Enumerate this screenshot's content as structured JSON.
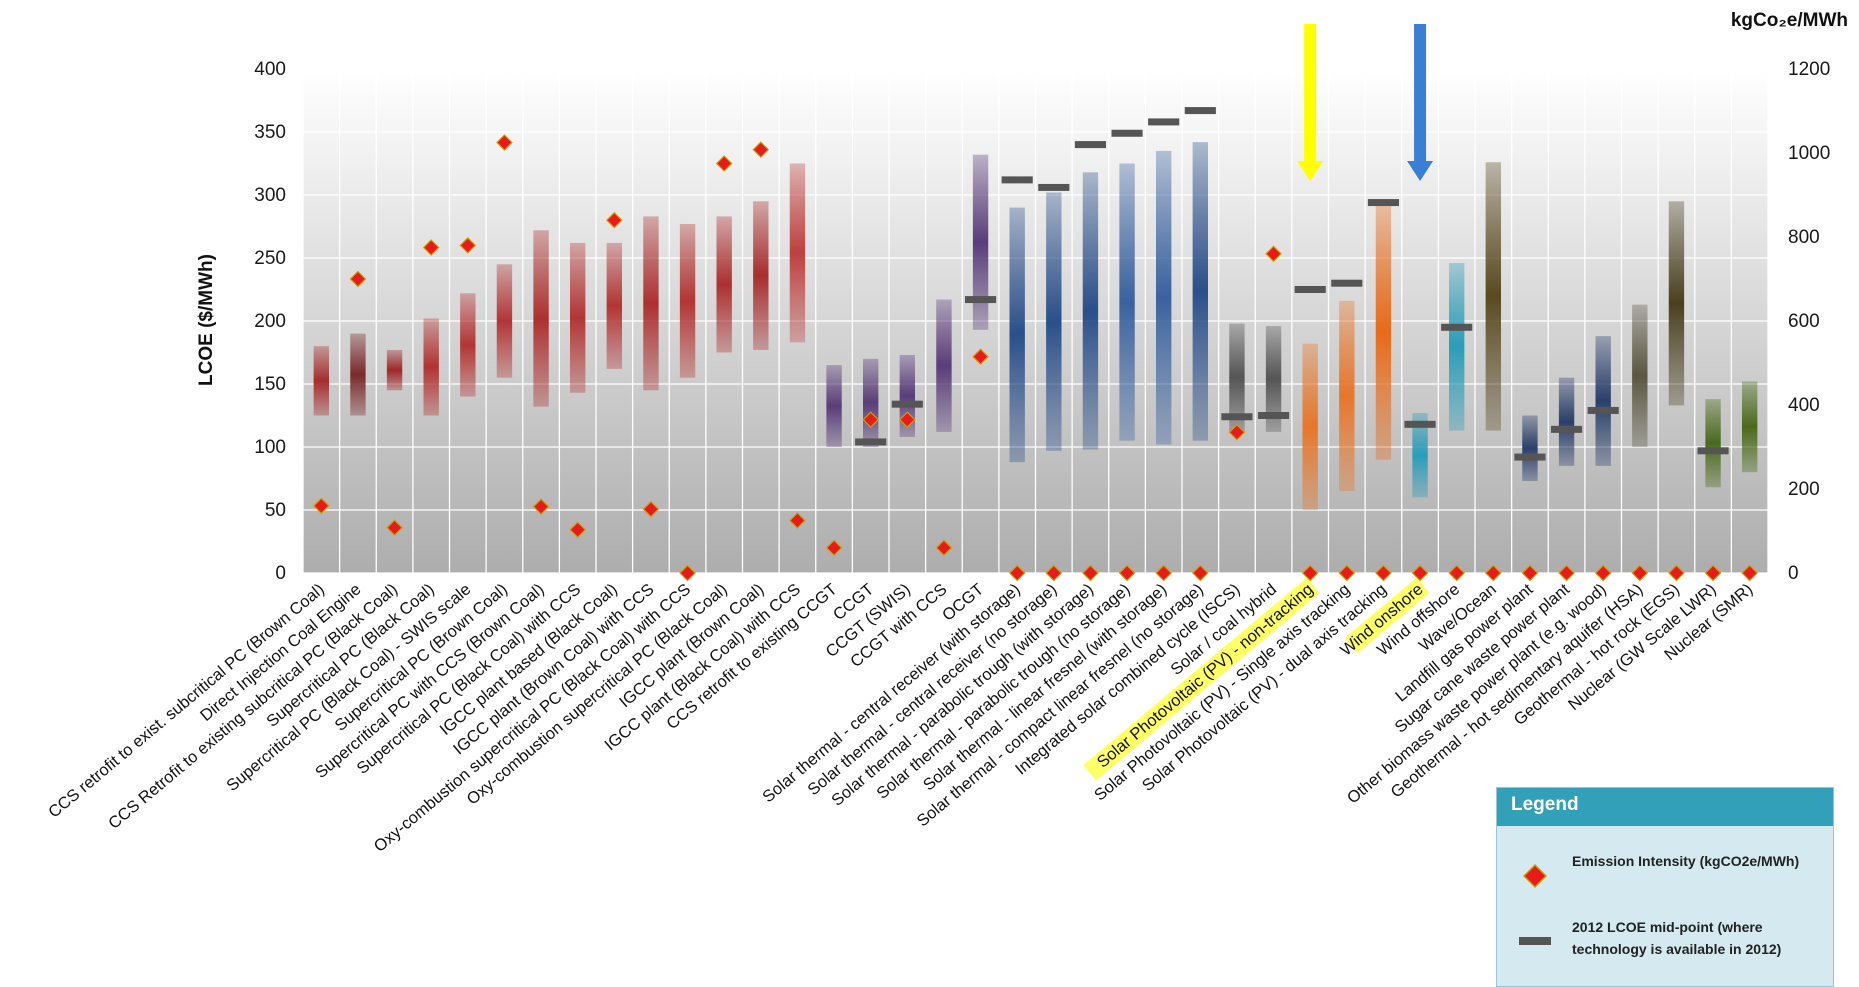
{
  "chart_data": {
    "type": "range-bar",
    "title": "",
    "ylabel": "LCOE ($/MWh)",
    "y2label": "kgCo₂e/MWh",
    "ylim": [
      0,
      400
    ],
    "y2lim": [
      0,
      1200
    ],
    "yticks": [
      0,
      50,
      100,
      150,
      200,
      250,
      300,
      350,
      400
    ],
    "y2ticks": [
      0,
      200,
      400,
      600,
      800,
      1000,
      1200
    ],
    "categories": [
      "CCS retrofit to exist. subcritical PC (Brown Coal)",
      "Direct Injection Coal Engine",
      "CCS Retrofit to existing subcritical PC (Black Coal)",
      "Supercritical PC (Black Coal)",
      "Supercritical PC (Black Coal) - SWIS scale",
      "Supercritical PC (Brown Coal)",
      "Supercritical PC with CCS (Brown Coal)",
      "Supercritical PC (Black Coal) with CCS",
      "IGCC plant based (Black Coal)",
      "IGCC plant (Brown Coal) with CCS",
      "Oxy-combustion supercritical PC (Black Coal) with CCS",
      "Oxy-combustion supercritical PC (Black Coal)",
      "IGCC plant (Brown Coal)",
      "IGCC plant (Black Coal) with CCS",
      "CCS retrofit to existing CCGT",
      "CCGT",
      "CCGT (SWIS)",
      "CCGT with CCS",
      "OCGT",
      "Solar thermal - central receiver (with storage)",
      "Solar thermal - central receiver (no storage)",
      "Solar thermal - parabolic trough (with storage)",
      "Solar thermal - parabolic trough (no storage)",
      "Solar thermal - linear fresnel (with storage)",
      "Solar thermal - compact linear fresnel (no storage)",
      "Integrated solar combined cycle (ISCS)",
      "Solar / coal hybrid",
      "Solar Photovoltaic (PV) - non-tracking",
      "Solar Photovoltaic (PV) - Single axis tracking",
      "Solar Photovoltaic (PV) - dual axis tracking",
      "Wind onshore",
      "Wind offshore",
      "Wave/Ocean",
      "Landfill gas power plant",
      "Sugar cane waste power plant",
      "Other biomass waste power plant (e.g. wood)",
      "Geothermal - hot sedimentary aquifer (HSA)",
      "Geothermal - hot rock (EGS)",
      "Nuclear (GW Scale LWR)",
      "Nuclear (SMR)"
    ],
    "highlighted_categories": [
      "Solar Photovoltaic (PV) - non-tracking",
      "Wind onshore"
    ],
    "lcoe_low": [
      125,
      125,
      145,
      125,
      140,
      155,
      132,
      143,
      162,
      145,
      155,
      175,
      177,
      183,
      100,
      100,
      108,
      112,
      193,
      88,
      97,
      98,
      105,
      102,
      105,
      112,
      112,
      50,
      65,
      90,
      60,
      113,
      113,
      73,
      85,
      85,
      100,
      133,
      68,
      80
    ],
    "lcoe_high": [
      180,
      190,
      177,
      202,
      222,
      245,
      272,
      262,
      262,
      283,
      277,
      283,
      295,
      325,
      165,
      170,
      173,
      217,
      332,
      290,
      302,
      318,
      325,
      335,
      342,
      198,
      196,
      182,
      216,
      293,
      127,
      246,
      326,
      125,
      155,
      188,
      213,
      295,
      138,
      152
    ],
    "lcoe_mid_2012": [
      null,
      null,
      null,
      null,
      null,
      null,
      null,
      null,
      null,
      null,
      null,
      null,
      null,
      null,
      null,
      104,
      134,
      null,
      217,
      312,
      306,
      340,
      349,
      358,
      367,
      124,
      125,
      225,
      230,
      294,
      118,
      195,
      null,
      92,
      114,
      129,
      null,
      null,
      97,
      null
    ],
    "emission_intensity": [
      160,
      700,
      108,
      775,
      780,
      1025,
      158,
      103,
      840,
      152,
      0,
      975,
      1008,
      125,
      60,
      365,
      365,
      60,
      515,
      0,
      0,
      0,
      0,
      0,
      0,
      335,
      760,
      0,
      0,
      0,
      0,
      0,
      0,
      0,
      0,
      0,
      0,
      0,
      0,
      0
    ],
    "bar_colors": [
      "#a52d2d",
      "#7a2a2a",
      "#a02828",
      "#b23232",
      "#b33535",
      "#b33535",
      "#ad3030",
      "#b33535",
      "#b33535",
      "#ad3030",
      "#b33535",
      "#ad3030",
      "#a82e2e",
      "#bf4040",
      "#5a3d7a",
      "#5a3d7a",
      "#5a3d7a",
      "#5a3d7a",
      "#5a3d7a",
      "#2b4f8a",
      "#2b4f8a",
      "#2b4f8a",
      "#3a62a0",
      "#3a62a0",
      "#2b4f8a",
      "#555555",
      "#555555",
      "#e8762a",
      "#e8762a",
      "#e86a1a",
      "#2b9db8",
      "#2b9db8",
      "#5a4a22",
      "#2b3f6b",
      "#2b3f6b",
      "#2b3f6b",
      "#5a5642",
      "#4a4020",
      "#4a6a1a",
      "#4a6a1a"
    ],
    "arrows": [
      {
        "category": 27,
        "color": "#ffff00"
      },
      {
        "category": 30,
        "color": "#3a7fd4"
      }
    ],
    "grid": true,
    "legend_position": "bottom-right",
    "legend": {
      "title": "Legend",
      "items": [
        {
          "label": "Emission Intensity (kgCO2e/MWh)",
          "marker": "diamond",
          "color": "#e81a1a"
        },
        {
          "label": "2012 LCOE mid-point (where technology is available in 2012)",
          "marker": "dash",
          "color": "#555555"
        }
      ]
    }
  }
}
